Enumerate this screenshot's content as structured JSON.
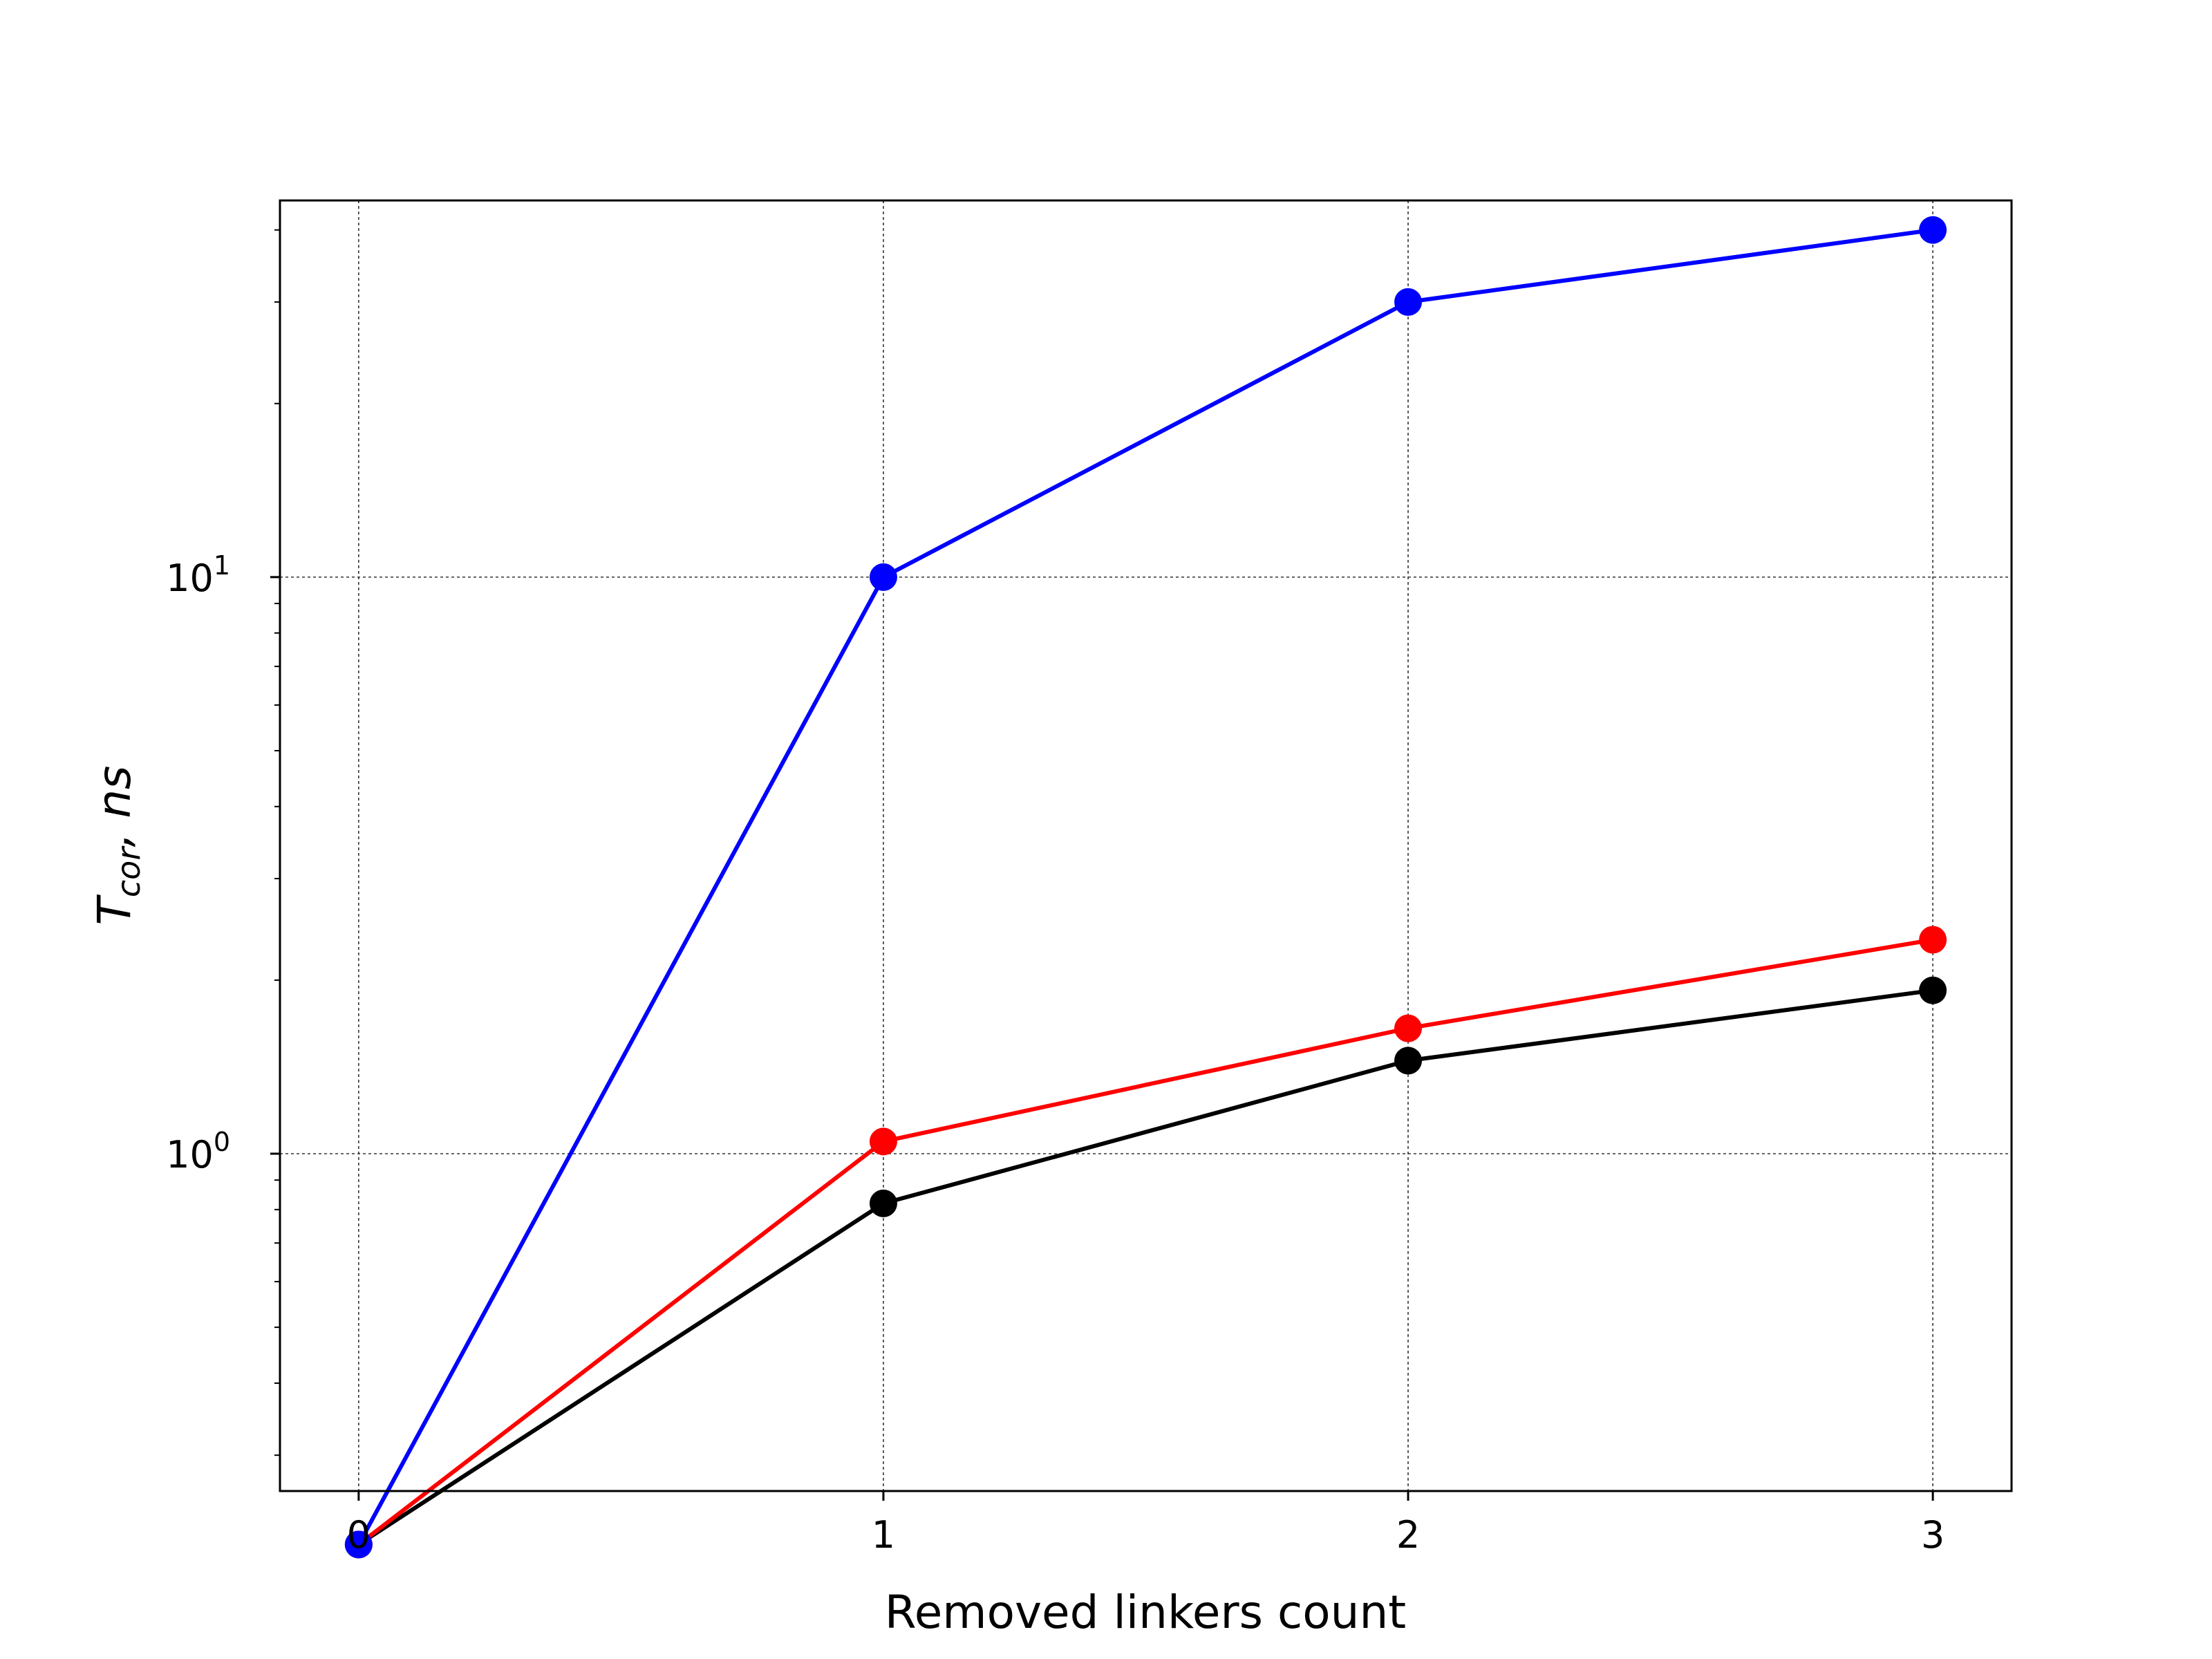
{
  "chart_data": {
    "type": "line",
    "title": "",
    "xlabel": "Removed linkers count",
    "ylabel": "T_cor, ns",
    "ylabel_parts": {
      "main": "T",
      "sub": "cor",
      "rest": ", ns"
    },
    "yscale": "log",
    "xlim": [
      -0.15,
      3.15
    ],
    "ylim": [
      0.26,
      45
    ],
    "grid": true,
    "legend": "none",
    "x": [
      0,
      1,
      2,
      3
    ],
    "x_ticks": [
      {
        "value": 0,
        "label": "0"
      },
      {
        "value": 1,
        "label": "1"
      },
      {
        "value": 2,
        "label": "2"
      },
      {
        "value": 3,
        "label": "3"
      }
    ],
    "y_ticks": [
      {
        "value": 1,
        "base": "10",
        "exp": "0"
      },
      {
        "value": 10,
        "base": "10",
        "exp": "1"
      }
    ],
    "series": [
      {
        "color": "#000000",
        "values": [
          0.21,
          0.82,
          1.45,
          1.92
        ]
      },
      {
        "color": "#ff0000",
        "values": [
          0.21,
          1.05,
          1.65,
          2.35
        ]
      },
      {
        "color": "#0000ff",
        "values": [
          0.21,
          10.0,
          30.0,
          40.0
        ]
      }
    ]
  }
}
